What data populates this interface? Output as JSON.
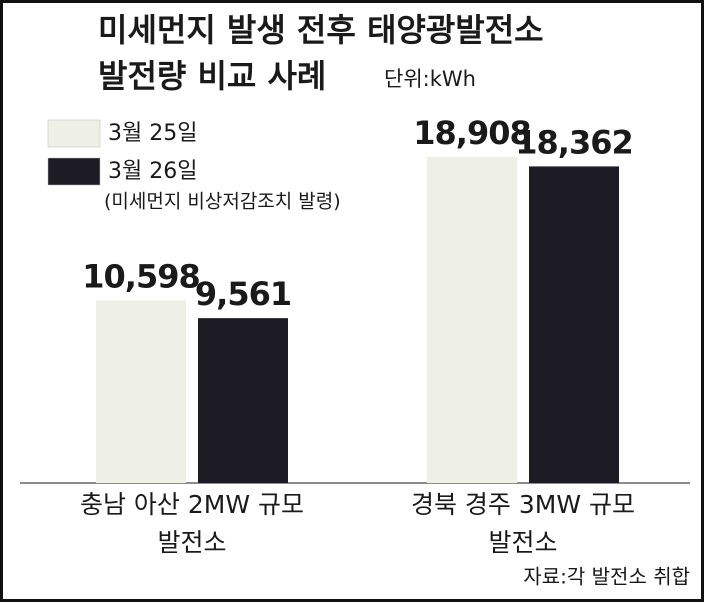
{
  "chart_data": {
    "type": "bar",
    "title": [
      "미세먼지 발생 전후 태양광발전소",
      "발전량 비교 사례"
    ],
    "unit": "단위:kWh",
    "legend_note": "(미세먼지 비상저감조치 발령)",
    "categories": [
      [
        "충남 아산 2MW 규모",
        "발전소"
      ],
      [
        "경북 경주 3MW 규모",
        "발전소"
      ]
    ],
    "series": [
      {
        "name": "3월 25일",
        "color": "#eef0e5",
        "values": [
          10598,
          18908
        ],
        "value_labels": [
          "10,598",
          "18,908"
        ]
      },
      {
        "name": "3월 26일",
        "color": "#1d1c25",
        "values": [
          9561,
          18362
        ],
        "value_labels": [
          "9,561",
          "18,362"
        ]
      }
    ],
    "source": "자료:각 발전소 취합"
  }
}
